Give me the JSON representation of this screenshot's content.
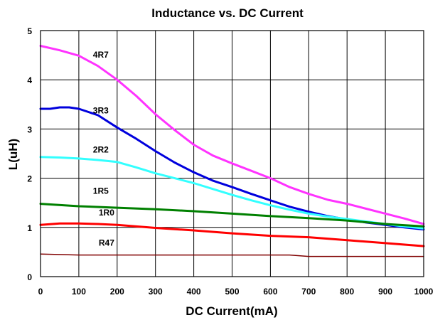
{
  "chart_data": {
    "type": "line",
    "title": "Inductance vs. DC Current",
    "xlabel": "DC Current(mA)",
    "ylabel": "L(uH)",
    "xlim": [
      0,
      1000
    ],
    "ylim": [
      0,
      5
    ],
    "x_ticks": [
      "0",
      "100",
      "200",
      "300",
      "400",
      "500",
      "600",
      "700",
      "800",
      "900",
      "1000"
    ],
    "y_ticks": [
      "0",
      "1",
      "2",
      "3",
      "4",
      "5"
    ],
    "grid": true,
    "legend": "inline labels",
    "series": [
      {
        "name": "4R7",
        "color": "#ff33ff",
        "x": [
          0,
          50,
          100,
          150,
          200,
          250,
          300,
          350,
          400,
          450,
          500,
          550,
          600,
          650,
          700,
          750,
          800,
          850,
          900,
          950,
          1000
        ],
        "y": [
          4.69,
          4.6,
          4.49,
          4.28,
          4.0,
          3.67,
          3.3,
          2.98,
          2.68,
          2.46,
          2.3,
          2.15,
          2.0,
          1.82,
          1.68,
          1.56,
          1.48,
          1.38,
          1.28,
          1.18,
          1.07
        ]
      },
      {
        "name": "3R3",
        "color": "#0000dd",
        "x": [
          0,
          25,
          50,
          75,
          100,
          150,
          200,
          250,
          300,
          350,
          400,
          450,
          500,
          550,
          600,
          650,
          700,
          750,
          800,
          850,
          900,
          950,
          1000
        ],
        "y": [
          3.41,
          3.41,
          3.44,
          3.44,
          3.41,
          3.28,
          3.03,
          2.8,
          2.55,
          2.32,
          2.12,
          1.95,
          1.82,
          1.68,
          1.55,
          1.42,
          1.32,
          1.23,
          1.16,
          1.1,
          1.05,
          1.0,
          0.96
        ]
      },
      {
        "name": "2R2",
        "color": "#33ffff",
        "x": [
          0,
          50,
          100,
          150,
          200,
          250,
          300,
          350,
          400,
          450,
          500,
          550,
          600,
          650,
          700,
          750,
          800,
          850,
          900,
          950,
          1000
        ],
        "y": [
          2.43,
          2.42,
          2.4,
          2.37,
          2.33,
          2.22,
          2.1,
          2.0,
          1.9,
          1.78,
          1.66,
          1.55,
          1.45,
          1.36,
          1.28,
          1.22,
          1.17,
          1.12,
          1.07,
          1.02,
          0.98
        ]
      },
      {
        "name": "1R5",
        "color": "#008000",
        "x": [
          0,
          100,
          200,
          300,
          400,
          500,
          600,
          700,
          800,
          900,
          1000
        ],
        "y": [
          1.48,
          1.43,
          1.4,
          1.37,
          1.33,
          1.28,
          1.23,
          1.19,
          1.14,
          1.07,
          1.02
        ]
      },
      {
        "name": "1R0",
        "color": "#ff0000",
        "x": [
          0,
          50,
          100,
          150,
          200,
          250,
          300,
          400,
          500,
          600,
          700,
          800,
          900,
          1000
        ],
        "y": [
          1.05,
          1.08,
          1.08,
          1.07,
          1.05,
          1.02,
          0.99,
          0.94,
          0.88,
          0.83,
          0.8,
          0.74,
          0.68,
          0.62
        ]
      },
      {
        "name": "R47",
        "color": "#800000",
        "x": [
          0,
          100,
          200,
          300,
          400,
          500,
          600,
          650,
          700,
          800,
          900,
          1000
        ],
        "y": [
          0.46,
          0.44,
          0.44,
          0.44,
          0.44,
          0.44,
          0.44,
          0.44,
          0.41,
          0.41,
          0.41,
          0.41
        ]
      }
    ]
  }
}
